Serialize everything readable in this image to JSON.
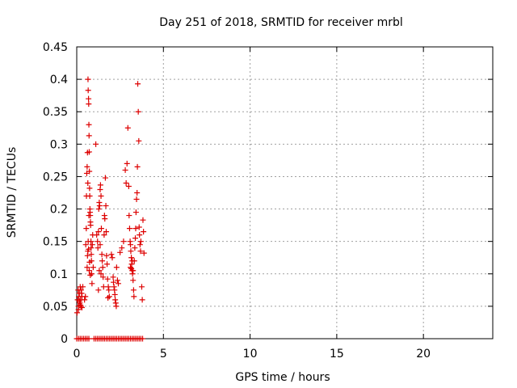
{
  "chart_data": {
    "type": "scatter",
    "title": "Day 251 of 2018, SRMTID for receiver mrbl",
    "xlabel": "GPS time / hours",
    "ylabel": "SRMTID / TECUs",
    "xlim": [
      0,
      24
    ],
    "ylim": [
      0,
      0.45
    ],
    "xticks": [
      0,
      5,
      10,
      15,
      20
    ],
    "xtick_labels": [
      "0",
      "5",
      "10",
      "15",
      "20"
    ],
    "yticks": [
      0,
      0.05,
      0.1,
      0.15,
      0.2,
      0.25,
      0.3,
      0.35,
      0.4,
      0.45
    ],
    "ytick_labels": [
      "0",
      "0.05",
      "0.1",
      "0.15",
      "0.2",
      "0.25",
      "0.3",
      "0.35",
      "0.4",
      "0.45"
    ],
    "grid": true,
    "marker": "+",
    "color": "#dd0000",
    "points": [
      [
        0.02,
        0.04
      ],
      [
        0.05,
        0.06
      ],
      [
        0.08,
        0.075
      ],
      [
        0.1,
        0.05
      ],
      [
        0.12,
        0.065
      ],
      [
        0.15,
        0.07
      ],
      [
        0.18,
        0.055
      ],
      [
        0.2,
        0.08
      ],
      [
        0.22,
        0.06
      ],
      [
        0.25,
        0.05
      ],
      [
        0.28,
        0.07
      ],
      [
        0.3,
        0.065
      ],
      [
        0.35,
        0.08
      ],
      [
        0.1,
        0.045
      ],
      [
        0.15,
        0.058
      ],
      [
        0.2,
        0.052
      ],
      [
        0.25,
        0.075
      ],
      [
        0.3,
        0.048
      ],
      [
        0.45,
        0.06
      ],
      [
        0.5,
        0.065
      ],
      [
        0.52,
        0.145
      ],
      [
        0.55,
        0.17
      ],
      [
        0.56,
        0.22
      ],
      [
        0.58,
        0.255
      ],
      [
        0.6,
        0.265
      ],
      [
        0.62,
        0.287
      ],
      [
        0.64,
        0.24
      ],
      [
        0.65,
        0.4
      ],
      [
        0.66,
        0.383
      ],
      [
        0.68,
        0.37
      ],
      [
        0.69,
        0.362
      ],
      [
        0.7,
        0.33
      ],
      [
        0.71,
        0.313
      ],
      [
        0.72,
        0.288
      ],
      [
        0.73,
        0.258
      ],
      [
        0.74,
        0.232
      ],
      [
        0.75,
        0.22
      ],
      [
        0.76,
        0.2
      ],
      [
        0.77,
        0.195
      ],
      [
        0.78,
        0.19
      ],
      [
        0.79,
        0.18
      ],
      [
        0.8,
        0.175
      ],
      [
        0.82,
        0.15
      ],
      [
        0.83,
        0.14
      ],
      [
        0.84,
        0.13
      ],
      [
        0.85,
        0.12
      ],
      [
        0.86,
        0.1
      ],
      [
        0.88,
        0.085
      ],
      [
        0.9,
        0.145
      ],
      [
        0.92,
        0.16
      ],
      [
        0.6,
        0.11
      ],
      [
        0.62,
        0.128
      ],
      [
        0.64,
        0.135
      ],
      [
        0.66,
        0.15
      ],
      [
        0.68,
        0.138
      ],
      [
        0.7,
        0.19
      ],
      [
        0.72,
        0.105
      ],
      [
        0.74,
        0.118
      ],
      [
        0.78,
        0.098
      ],
      [
        0.95,
        0.11
      ],
      [
        1.1,
        0.3
      ],
      [
        1.15,
        0.16
      ],
      [
        1.2,
        0.15
      ],
      [
        1.22,
        0.14
      ],
      [
        1.25,
        0.165
      ],
      [
        1.27,
        0.2
      ],
      [
        1.3,
        0.21
      ],
      [
        1.32,
        0.205
      ],
      [
        1.35,
        0.23
      ],
      [
        1.37,
        0.237
      ],
      [
        1.4,
        0.22
      ],
      [
        1.42,
        0.17
      ],
      [
        1.45,
        0.13
      ],
      [
        1.47,
        0.12
      ],
      [
        1.5,
        0.11
      ],
      [
        1.52,
        0.095
      ],
      [
        1.55,
        0.08
      ],
      [
        1.58,
        0.16
      ],
      [
        1.6,
        0.19
      ],
      [
        1.62,
        0.185
      ],
      [
        1.65,
        0.248
      ],
      [
        1.68,
        0.205
      ],
      [
        1.7,
        0.165
      ],
      [
        1.72,
        0.128
      ],
      [
        1.75,
        0.115
      ],
      [
        1.78,
        0.092
      ],
      [
        1.8,
        0.063
      ],
      [
        1.82,
        0.08
      ],
      [
        1.85,
        0.075
      ],
      [
        1.88,
        0.065
      ],
      [
        1.25,
        0.075
      ],
      [
        1.3,
        0.105
      ],
      [
        1.35,
        0.145
      ],
      [
        1.4,
        0.1
      ],
      [
        2.0,
        0.13
      ],
      [
        2.05,
        0.125
      ],
      [
        2.1,
        0.095
      ],
      [
        2.12,
        0.087
      ],
      [
        2.15,
        0.08
      ],
      [
        2.18,
        0.075
      ],
      [
        2.2,
        0.068
      ],
      [
        2.22,
        0.06
      ],
      [
        2.25,
        0.055
      ],
      [
        2.28,
        0.05
      ],
      [
        2.3,
        0.11
      ],
      [
        2.35,
        0.09
      ],
      [
        2.4,
        0.085
      ],
      [
        2.5,
        0.133
      ],
      [
        2.6,
        0.14
      ],
      [
        2.7,
        0.15
      ],
      [
        2.8,
        0.26
      ],
      [
        2.85,
        0.24
      ],
      [
        2.9,
        0.27
      ],
      [
        2.95,
        0.325
      ],
      [
        3.0,
        0.235
      ],
      [
        3.02,
        0.19
      ],
      [
        3.05,
        0.17
      ],
      [
        3.08,
        0.15
      ],
      [
        3.1,
        0.145
      ],
      [
        3.12,
        0.135
      ],
      [
        3.15,
        0.125
      ],
      [
        3.17,
        0.115
      ],
      [
        3.2,
        0.105
      ],
      [
        3.22,
        0.1
      ],
      [
        3.25,
        0.09
      ],
      [
        3.28,
        0.075
      ],
      [
        3.3,
        0.065
      ],
      [
        3.32,
        0.12
      ],
      [
        3.35,
        0.14
      ],
      [
        3.38,
        0.155
      ],
      [
        3.4,
        0.17
      ],
      [
        3.42,
        0.195
      ],
      [
        3.45,
        0.215
      ],
      [
        3.48,
        0.225
      ],
      [
        3.5,
        0.265
      ],
      [
        3.52,
        0.393
      ],
      [
        3.55,
        0.35
      ],
      [
        3.58,
        0.305
      ],
      [
        3.6,
        0.172
      ],
      [
        3.62,
        0.16
      ],
      [
        3.65,
        0.145
      ],
      [
        3.68,
        0.135
      ],
      [
        3.7,
        0.15
      ],
      [
        3.75,
        0.08
      ],
      [
        3.78,
        0.06
      ],
      [
        3.82,
        0.183
      ],
      [
        3.85,
        0.165
      ],
      [
        3.88,
        0.132
      ],
      [
        3.1,
        0.11
      ],
      [
        3.15,
        0.108
      ],
      [
        3.2,
        0.12
      ],
      [
        3.25,
        0.105
      ],
      [
        0.0,
        0.0
      ],
      [
        0.1,
        0.0
      ],
      [
        0.2,
        0.0
      ],
      [
        0.3,
        0.0
      ],
      [
        0.4,
        0.0
      ],
      [
        0.5,
        0.0
      ],
      [
        0.6,
        0.0
      ],
      [
        0.7,
        0.0
      ],
      [
        1.0,
        0.0
      ],
      [
        1.1,
        0.0
      ],
      [
        1.2,
        0.0
      ],
      [
        1.3,
        0.0
      ],
      [
        1.4,
        0.0
      ],
      [
        1.5,
        0.0
      ],
      [
        1.6,
        0.0
      ],
      [
        1.7,
        0.0
      ],
      [
        1.8,
        0.0
      ],
      [
        1.9,
        0.0
      ],
      [
        2.0,
        0.0
      ],
      [
        2.1,
        0.0
      ],
      [
        2.2,
        0.0
      ],
      [
        2.3,
        0.0
      ],
      [
        2.4,
        0.0
      ],
      [
        2.5,
        0.0
      ],
      [
        2.6,
        0.0
      ],
      [
        2.7,
        0.0
      ],
      [
        2.8,
        0.0
      ],
      [
        2.9,
        0.0
      ],
      [
        3.0,
        0.0
      ],
      [
        3.1,
        0.0
      ],
      [
        3.2,
        0.0
      ],
      [
        3.3,
        0.0
      ],
      [
        3.4,
        0.0
      ],
      [
        3.5,
        0.0
      ],
      [
        3.6,
        0.0
      ],
      [
        3.7,
        0.0
      ],
      [
        3.8,
        0.0
      ]
    ]
  }
}
